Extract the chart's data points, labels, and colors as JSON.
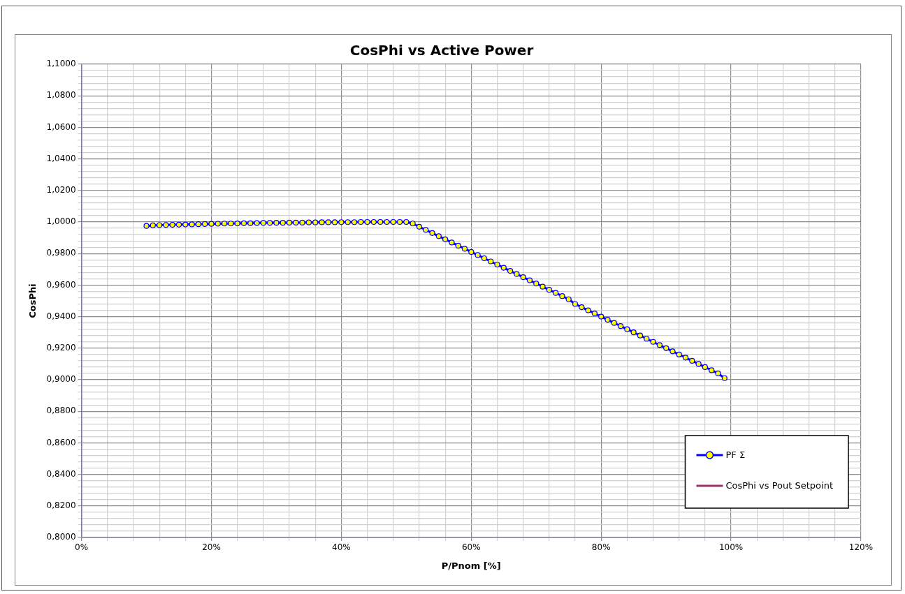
{
  "chart_data": {
    "type": "line",
    "title": "CosPhi vs Active Power",
    "xlabel": "P/Pnom [%]",
    "ylabel": "CosPhi",
    "xlim": [
      0,
      120
    ],
    "xticks": [
      {
        "value": 0,
        "label": "0%"
      },
      {
        "value": 4,
        "label": null
      },
      {
        "value": 8,
        "label": null
      },
      {
        "value": 12,
        "label": null
      },
      {
        "value": 16,
        "label": null
      },
      {
        "value": 20,
        "label": "20%"
      },
      {
        "value": 24,
        "label": null
      },
      {
        "value": 28,
        "label": null
      },
      {
        "value": 32,
        "label": null
      },
      {
        "value": 36,
        "label": null
      },
      {
        "value": 40,
        "label": "40%"
      },
      {
        "value": 44,
        "label": null
      },
      {
        "value": 48,
        "label": null
      },
      {
        "value": 52,
        "label": null
      },
      {
        "value": 56,
        "label": null
      },
      {
        "value": 60,
        "label": "60%"
      },
      {
        "value": 64,
        "label": null
      },
      {
        "value": 68,
        "label": null
      },
      {
        "value": 72,
        "label": null
      },
      {
        "value": 76,
        "label": null
      },
      {
        "value": 80,
        "label": "80%"
      },
      {
        "value": 84,
        "label": null
      },
      {
        "value": 88,
        "label": null
      },
      {
        "value": 92,
        "label": null
      },
      {
        "value": 96,
        "label": null
      },
      {
        "value": 100,
        "label": "100%"
      },
      {
        "value": 104,
        "label": null
      },
      {
        "value": 108,
        "label": null
      },
      {
        "value": 112,
        "label": null
      },
      {
        "value": 116,
        "label": null
      },
      {
        "value": 120,
        "label": "120%"
      }
    ],
    "ylim": [
      0.8,
      1.1
    ],
    "yticks": [
      {
        "value": 0.8,
        "label": "0,8000"
      },
      {
        "value": 0.804,
        "label": null
      },
      {
        "value": 0.808,
        "label": null
      },
      {
        "value": 0.812,
        "label": null
      },
      {
        "value": 0.816,
        "label": null
      },
      {
        "value": 0.82,
        "label": "0,8200"
      },
      {
        "value": 0.824,
        "label": null
      },
      {
        "value": 0.828,
        "label": null
      },
      {
        "value": 0.832,
        "label": null
      },
      {
        "value": 0.836,
        "label": null
      },
      {
        "value": 0.84,
        "label": "0,8400"
      },
      {
        "value": 0.844,
        "label": null
      },
      {
        "value": 0.848,
        "label": null
      },
      {
        "value": 0.852,
        "label": null
      },
      {
        "value": 0.856,
        "label": null
      },
      {
        "value": 0.86,
        "label": "0,8600"
      },
      {
        "value": 0.864,
        "label": null
      },
      {
        "value": 0.868,
        "label": null
      },
      {
        "value": 0.872,
        "label": null
      },
      {
        "value": 0.876,
        "label": null
      },
      {
        "value": 0.88,
        "label": "0,8800"
      },
      {
        "value": 0.884,
        "label": null
      },
      {
        "value": 0.888,
        "label": null
      },
      {
        "value": 0.892,
        "label": null
      },
      {
        "value": 0.896,
        "label": null
      },
      {
        "value": 0.9,
        "label": "0,9000"
      },
      {
        "value": 0.904,
        "label": null
      },
      {
        "value": 0.908,
        "label": null
      },
      {
        "value": 0.912,
        "label": null
      },
      {
        "value": 0.916,
        "label": null
      },
      {
        "value": 0.92,
        "label": "0,9200"
      },
      {
        "value": 0.924,
        "label": null
      },
      {
        "value": 0.928,
        "label": null
      },
      {
        "value": 0.932,
        "label": null
      },
      {
        "value": 0.936,
        "label": null
      },
      {
        "value": 0.94,
        "label": "0,9400"
      },
      {
        "value": 0.944,
        "label": null
      },
      {
        "value": 0.948,
        "label": null
      },
      {
        "value": 0.952,
        "label": null
      },
      {
        "value": 0.956,
        "label": null
      },
      {
        "value": 0.96,
        "label": "0,9600"
      },
      {
        "value": 0.964,
        "label": null
      },
      {
        "value": 0.968,
        "label": null
      },
      {
        "value": 0.972,
        "label": null
      },
      {
        "value": 0.976,
        "label": null
      },
      {
        "value": 0.98,
        "label": "0,9800"
      },
      {
        "value": 0.984,
        "label": null
      },
      {
        "value": 0.988,
        "label": null
      },
      {
        "value": 0.992,
        "label": null
      },
      {
        "value": 0.996,
        "label": null
      },
      {
        "value": 1.0,
        "label": "1,0000"
      },
      {
        "value": 1.004,
        "label": null
      },
      {
        "value": 1.008,
        "label": null
      },
      {
        "value": 1.012,
        "label": null
      },
      {
        "value": 1.016,
        "label": null
      },
      {
        "value": 1.02,
        "label": "1,0200"
      },
      {
        "value": 1.024,
        "label": null
      },
      {
        "value": 1.028,
        "label": null
      },
      {
        "value": 1.032,
        "label": null
      },
      {
        "value": 1.036,
        "label": null
      },
      {
        "value": 1.04,
        "label": "1,0400"
      },
      {
        "value": 1.044,
        "label": null
      },
      {
        "value": 1.048,
        "label": null
      },
      {
        "value": 1.052,
        "label": null
      },
      {
        "value": 1.056,
        "label": null
      },
      {
        "value": 1.06,
        "label": "1,0600"
      },
      {
        "value": 1.064,
        "label": null
      },
      {
        "value": 1.068,
        "label": null
      },
      {
        "value": 1.072,
        "label": null
      },
      {
        "value": 1.076,
        "label": null
      },
      {
        "value": 1.08,
        "label": "1,0800"
      },
      {
        "value": 1.084,
        "label": null
      },
      {
        "value": 1.088,
        "label": null
      },
      {
        "value": 1.092,
        "label": null
      },
      {
        "value": 1.096,
        "label": null
      },
      {
        "value": 1.1,
        "label": "1,1000"
      }
    ],
    "grid": true,
    "legend": "bottom right",
    "marker": "circle",
    "line_style": "solid",
    "x": [
      10,
      11,
      12,
      13,
      14,
      15,
      16,
      17,
      18,
      19,
      20,
      21,
      22,
      23,
      24,
      25,
      26,
      27,
      28,
      29,
      30,
      31,
      32,
      33,
      34,
      35,
      36,
      37,
      38,
      39,
      40,
      41,
      42,
      43,
      44,
      45,
      46,
      47,
      48,
      49,
      50,
      51,
      52,
      53,
      54,
      55,
      56,
      57,
      58,
      59,
      60,
      61,
      62,
      63,
      64,
      65,
      66,
      67,
      68,
      69,
      70,
      71,
      72,
      73,
      74,
      75,
      76,
      77,
      78,
      79,
      80,
      81,
      82,
      83,
      84,
      85,
      86,
      87,
      88,
      89,
      90,
      91,
      92,
      93,
      94,
      95,
      96,
      97,
      98,
      99
    ],
    "series": [
      {
        "name": "PF Σ",
        "color": "#0000ff",
        "values": [
          0.9975,
          0.9978,
          0.998,
          0.9981,
          0.9982,
          0.9983,
          0.9984,
          0.9985,
          0.9986,
          0.9987,
          0.9988,
          0.9989,
          0.999,
          0.999,
          0.9991,
          0.9992,
          0.9992,
          0.9993,
          0.9994,
          0.9994,
          0.9995,
          0.9995,
          0.9996,
          0.9996,
          0.9996,
          0.9997,
          0.9997,
          0.9998,
          0.9998,
          0.9998,
          0.9999,
          0.9999,
          0.9999,
          1.0,
          1.0,
          1.0,
          1.0,
          1.0,
          1.0,
          1.0,
          1.0,
          0.999,
          0.997,
          0.995,
          0.993,
          0.991,
          0.989,
          0.987,
          0.985,
          0.983,
          0.981,
          0.979,
          0.977,
          0.975,
          0.973,
          0.971,
          0.969,
          0.967,
          0.965,
          0.963,
          0.961,
          0.959,
          0.957,
          0.955,
          0.953,
          0.951,
          0.948,
          0.946,
          0.944,
          0.942,
          0.94,
          0.938,
          0.936,
          0.934,
          0.932,
          0.93,
          0.928,
          0.926,
          0.924,
          0.922,
          0.92,
          0.918,
          0.916,
          0.914,
          0.912,
          0.91,
          0.908,
          0.906,
          0.904,
          0.901
        ]
      },
      {
        "name": "CosPhi vs Pout Setpoint",
        "color": "#993366",
        "marker": "none",
        "values": [
          null,
          null,
          null,
          null,
          null,
          null,
          null,
          null,
          null,
          null,
          null,
          null,
          null,
          null,
          null,
          null,
          null,
          null,
          null,
          null,
          null,
          null,
          null,
          null,
          null,
          null,
          null,
          null,
          null,
          null,
          null,
          null,
          null,
          null,
          null,
          null,
          null,
          null,
          null,
          null,
          null,
          null,
          null,
          null,
          null,
          null,
          null,
          null,
          null,
          null,
          null,
          null,
          null,
          null,
          null,
          null,
          null,
          null,
          null,
          null,
          null,
          null,
          null,
          null,
          null,
          null,
          null,
          null,
          null,
          null,
          null,
          null,
          null,
          null,
          null,
          null,
          null,
          null,
          null,
          null,
          null,
          null,
          null,
          null,
          null,
          null,
          null,
          null,
          null,
          null
        ]
      }
    ]
  }
}
